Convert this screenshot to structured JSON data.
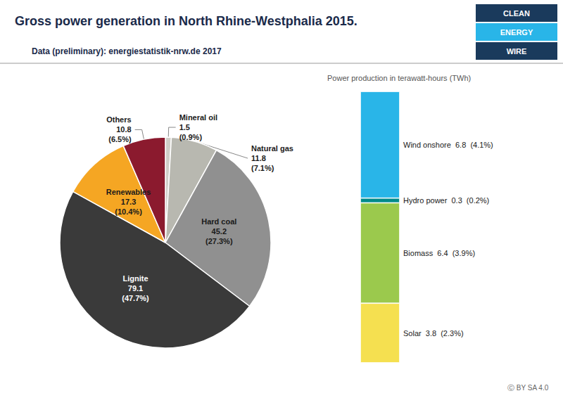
{
  "chart_data": [
    {
      "type": "pie",
      "title": "Gross power generation in North Rhine-Westphalia 2015.",
      "subtitle": "Data (preliminary): energiestatistik-nrw.de 2017",
      "categories": [
        "Mineral oil",
        "Natural gas",
        "Hard coal",
        "Lignite",
        "Renewables",
        "Others"
      ],
      "values": [
        1.5,
        11.8,
        45.2,
        79.1,
        17.3,
        10.8
      ],
      "percent_labels": [
        "(0.9%)",
        "(7.1%)",
        "(27.3%)",
        "(47.7%)",
        "(10.4%)",
        "(6.5%)"
      ],
      "colors": [
        "#d0cec8",
        "#b8b8b0",
        "#909090",
        "#3a3a3a",
        "#f5a623",
        "#8b1a2e"
      ],
      "data_labels": true
    },
    {
      "type": "bar",
      "title": "Power production in terawatt-hours (TWh)",
      "stacked": true,
      "tick_labels": false,
      "ylim": [
        0,
        17.3
      ],
      "data_labels": true,
      "series": [
        {
          "name": "Solar",
          "color": "#f5e050",
          "values": [
            3.8
          ],
          "value_labels": [
            "3.8  (2.3%)"
          ]
        },
        {
          "name": "Biomass",
          "color": "#9bc94d",
          "values": [
            6.4
          ],
          "value_labels": [
            "6.4  (3.9%)"
          ]
        },
        {
          "name": "Hydro power",
          "color": "#008b8b",
          "values": [
            0.3
          ],
          "value_labels": [
            "0.3  (0.2%)"
          ]
        },
        {
          "name": "Wind onshore",
          "color": "#29b5e8",
          "values": [
            6.8
          ],
          "value_labels": [
            "6.8  (4.1%)"
          ]
        }
      ]
    }
  ],
  "logo": {
    "lines": [
      "CLEAN",
      "ENERGY",
      "WIRE"
    ],
    "colors": [
      "#1a3a5c",
      "#29b5e8",
      "#1a3a5c"
    ]
  },
  "annotations": [
    "Ⓒ BY SA 4.0"
  ]
}
